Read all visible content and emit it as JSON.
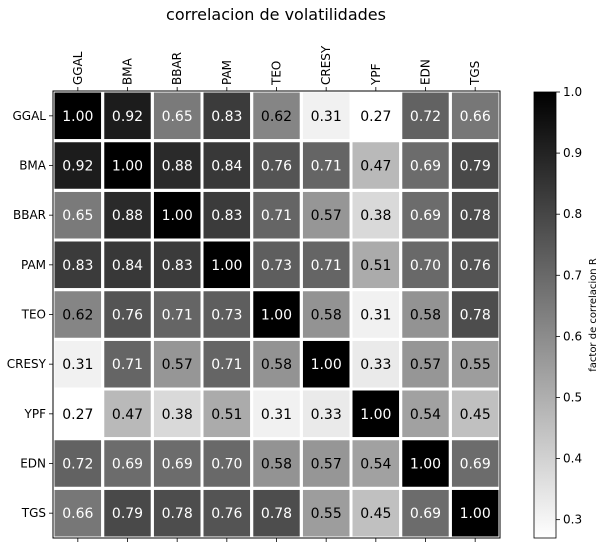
{
  "chart_data": {
    "type": "heatmap",
    "title": "correlacion de volatilidades",
    "labels": [
      "GGAL",
      "BMA",
      "BBAR",
      "PAM",
      "TEO",
      "CRESY",
      "YPF",
      "EDN",
      "TGS"
    ],
    "values": [
      [
        1.0,
        0.92,
        0.65,
        0.83,
        0.62,
        0.31,
        0.27,
        0.72,
        0.66
      ],
      [
        0.92,
        1.0,
        0.88,
        0.84,
        0.76,
        0.71,
        0.47,
        0.69,
        0.79
      ],
      [
        0.65,
        0.88,
        1.0,
        0.83,
        0.71,
        0.57,
        0.38,
        0.69,
        0.78
      ],
      [
        0.83,
        0.84,
        0.83,
        1.0,
        0.73,
        0.71,
        0.51,
        0.7,
        0.76
      ],
      [
        0.62,
        0.76,
        0.71,
        0.73,
        1.0,
        0.58,
        0.31,
        0.58,
        0.78
      ],
      [
        0.31,
        0.71,
        0.57,
        0.71,
        0.58,
        1.0,
        0.33,
        0.57,
        0.55
      ],
      [
        0.27,
        0.47,
        0.38,
        0.51,
        0.31,
        0.33,
        1.0,
        0.54,
        0.45
      ],
      [
        0.72,
        0.69,
        0.69,
        0.7,
        0.58,
        0.57,
        0.54,
        1.0,
        0.69
      ],
      [
        0.66,
        0.79,
        0.78,
        0.76,
        0.78,
        0.55,
        0.45,
        0.69,
        1.0
      ]
    ],
    "colormap": "Greys",
    "vmin": 0.27,
    "vmax": 1.0,
    "colorbar_label": "factor de correlacion R",
    "colorbar_ticks": [
      "0.3",
      "0.4",
      "0.5",
      "0.6",
      "0.7",
      "0.8",
      "0.9",
      "1.0"
    ],
    "grid_line_color": "#ffffff",
    "x_tick_position": "top",
    "x_tick_rotation": "vertical"
  }
}
